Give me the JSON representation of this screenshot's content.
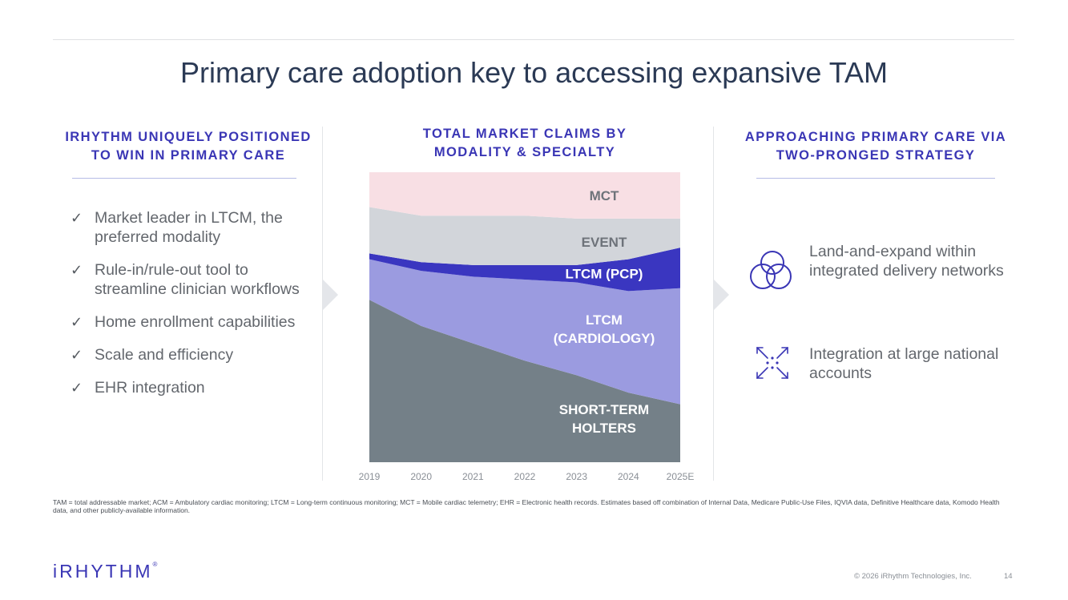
{
  "title": "Primary care adoption key to accessing expansive TAM",
  "left_column": {
    "heading_line1": "IRHYTHM UNIQUELY POSITIONED",
    "heading_line2": "TO WIN IN PRIMARY CARE",
    "bullets": [
      "Market leader in LTCM, the preferred modality",
      "Rule-in/rule-out tool to streamline clinician workflows",
      "Home enrollment capabilities",
      "Scale and efficiency",
      "EHR integration"
    ],
    "check_glyph": "✓"
  },
  "middle_column": {
    "heading_line1": "TOTAL MARKET CLAIMS BY",
    "heading_line2": "MODALITY & SPECIALTY"
  },
  "right_column": {
    "heading_line1": "APPROACHING PRIMARY CARE VIA",
    "heading_line2": "TWO-PRONGED STRATEGY",
    "items": [
      {
        "icon": "overlapping-circles-icon",
        "text": "Land-and-expand within integrated delivery networks"
      },
      {
        "icon": "expand-arrows-icon",
        "text": "Integration at large national accounts"
      }
    ]
  },
  "chart_data": {
    "type": "area",
    "stacked": true,
    "normalized": true,
    "title": "TOTAL MARKET CLAIMS BY MODALITY & SPECIALTY",
    "x": [
      "2019",
      "2020",
      "2021",
      "2022",
      "2023",
      "2024",
      "2025E"
    ],
    "ylim": [
      0,
      100
    ],
    "series": [
      {
        "name": "SHORT-TERM HOLTERS",
        "label_lines": [
          "SHORT-TERM",
          "HOLTERS"
        ],
        "color": "#748088",
        "values": [
          56,
          47,
          41,
          35,
          30,
          24,
          20
        ]
      },
      {
        "name": "LTCM (CARDIOLOGY)",
        "label_lines": [
          "LTCM",
          "(CARDIOLOGY)"
        ],
        "color": "#9b9be0",
        "values": [
          14,
          19,
          23,
          28,
          32,
          35,
          40
        ]
      },
      {
        "name": "LTCM (PCP)",
        "label_lines": [
          "LTCM (PCP)"
        ],
        "color": "#3a36c0",
        "values": [
          2,
          3,
          4,
          5,
          6,
          11,
          14
        ]
      },
      {
        "name": "EVENT",
        "label_lines": [
          "EVENT"
        ],
        "color": "#d2d5da",
        "values": [
          16,
          16,
          17,
          17,
          16,
          14,
          10
        ]
      },
      {
        "name": "MCT",
        "label_lines": [
          "MCT"
        ],
        "color": "#f8dfe4",
        "values": [
          12,
          15,
          15,
          15,
          16,
          16,
          16
        ]
      }
    ]
  },
  "footnote": "TAM = total addressable market; ACM = Ambulatory cardiac monitoring; LTCM = Long-term continuous monitoring; MCT = Mobile cardiac telemetry; EHR = Electronic health records. Estimates based off combination of Internal Data, Medicare Public-Use Files, IQVIA data, Definitive Healthcare data, Komodo Health data, and other publicly-available information.",
  "logo": {
    "text": "iRHYTHM",
    "mark": "®"
  },
  "copyright": "© 2026 iRhythm Technologies, Inc.",
  "page_number": "14"
}
